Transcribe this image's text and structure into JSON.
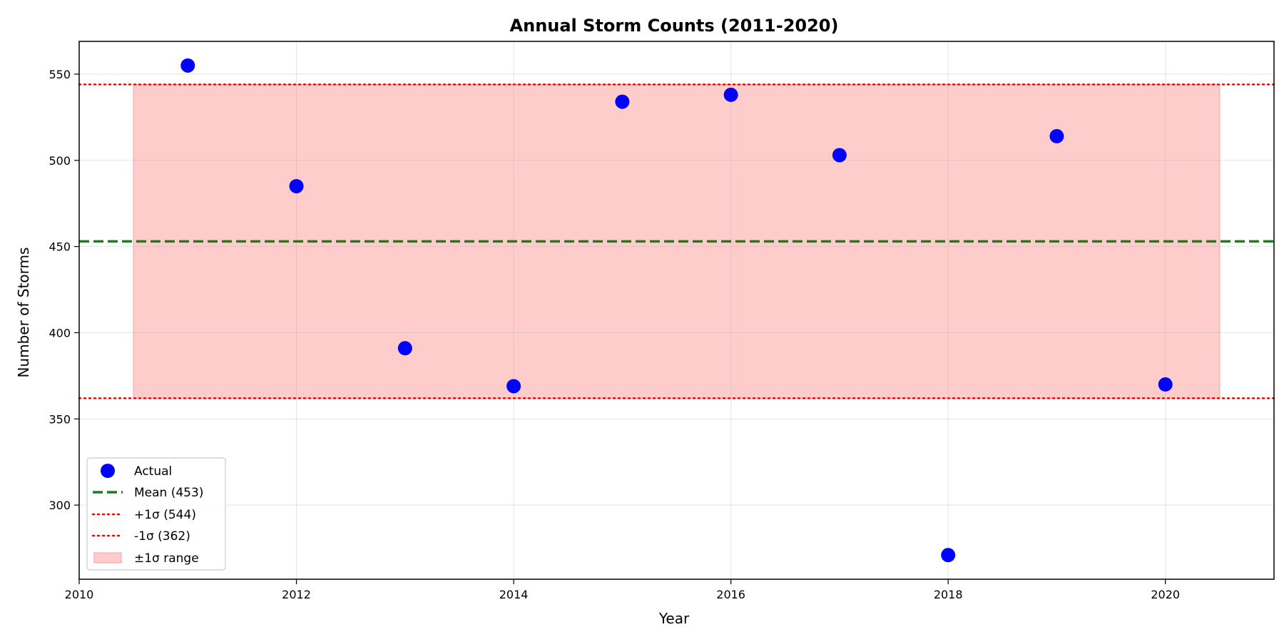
{
  "chart_data": {
    "type": "scatter",
    "title": "Annual Storm Counts (2011-2020)",
    "xlabel": "Year",
    "ylabel": "Number of Storms",
    "xlim": [
      2010,
      2021
    ],
    "ylim": [
      257,
      569
    ],
    "xticks": [
      2010,
      2012,
      2014,
      2016,
      2018,
      2020
    ],
    "yticks": [
      300,
      350,
      400,
      450,
      500,
      550
    ],
    "grid": true,
    "legend_position": "lower-left",
    "series": [
      {
        "name": "Actual",
        "color": "#0000ff",
        "x": [
          2011,
          2012,
          2013,
          2014,
          2015,
          2016,
          2017,
          2018,
          2019,
          2020
        ],
        "y": [
          555,
          485,
          391,
          369,
          534,
          538,
          503,
          271,
          514,
          370
        ]
      }
    ],
    "mean": {
      "label": "Mean (453)",
      "value": 453,
      "color": "#1a7f1a"
    },
    "upper": {
      "label": "+1σ (544)",
      "value": 544,
      "color": "#ff0000"
    },
    "lower": {
      "label": "-1σ (362)",
      "value": 362,
      "color": "#ff0000"
    },
    "band": {
      "label": "±1σ range",
      "x_range": [
        2010.5,
        2020.5
      ],
      "color": "#ffcccc"
    }
  }
}
